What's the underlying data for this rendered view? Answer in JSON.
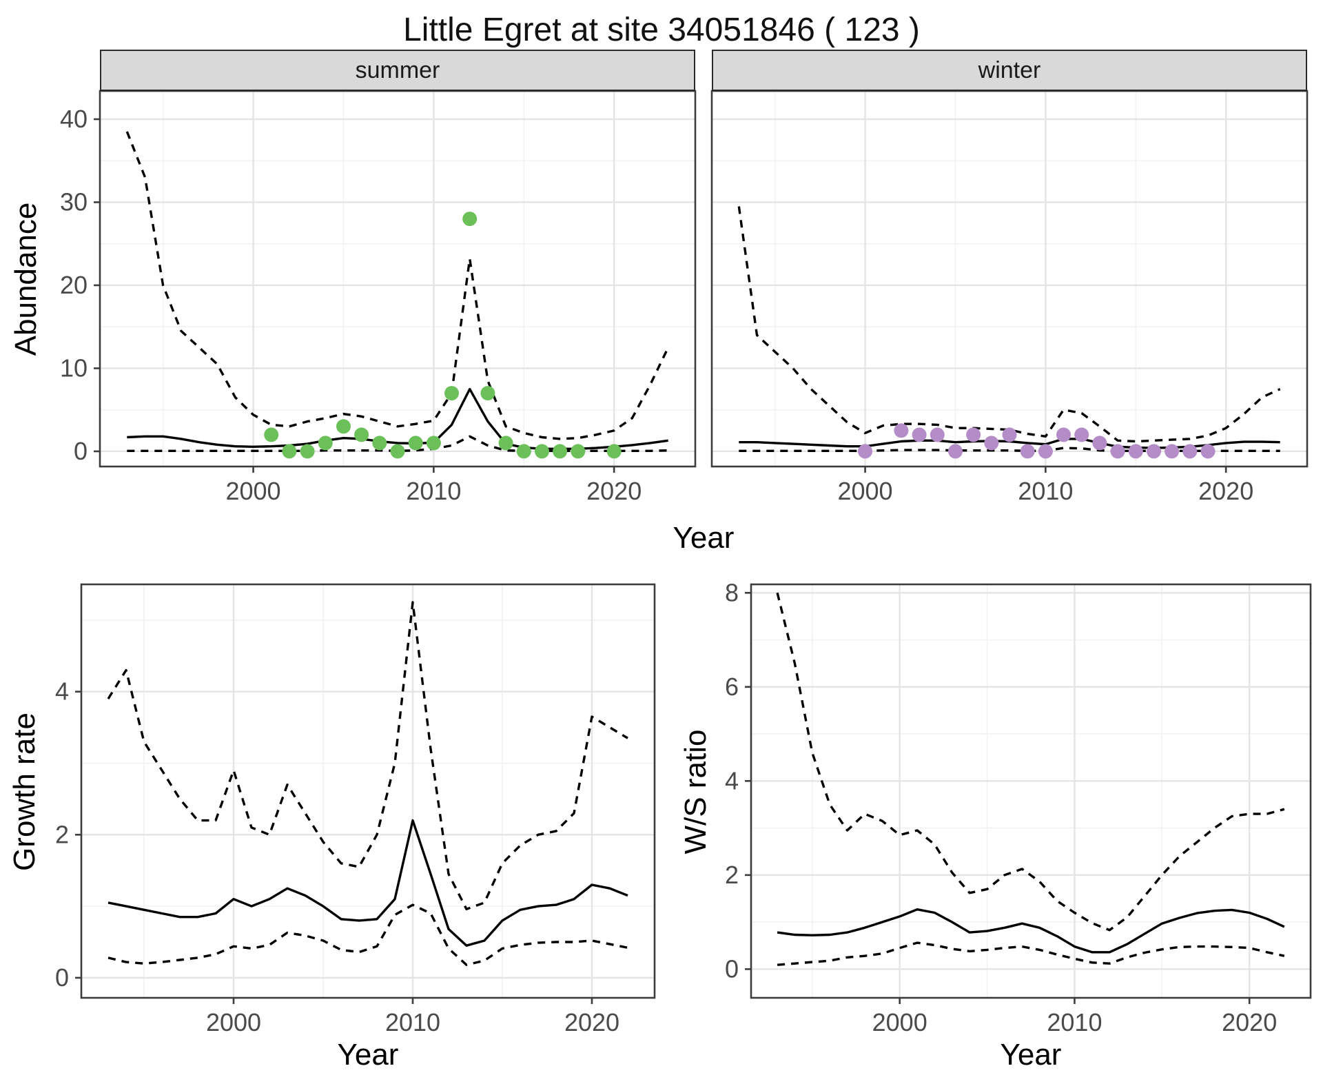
{
  "title": "Little Egret at site 34051846 ( 123 )",
  "colors": {
    "observed_summer": "#6CC05A",
    "observed_winter": "#B48CC8",
    "line": "#000000",
    "grid_major": "#E4E4E4",
    "grid_minor": "#F2F2F2",
    "panel_border": "#3C3C3C",
    "strip_bg": "#D9D9D9",
    "tick_text": "#4A4A4A"
  },
  "chart_data": [
    {
      "id": "abundance_summer",
      "type": "line",
      "facet_label": "summer",
      "ylabel": "Abundance",
      "xlabel": "Year",
      "xlim": [
        1991.5,
        2024.5
      ],
      "ylim": [
        -1.83,
        43.4
      ],
      "x_ticks": [
        2000,
        2010,
        2020
      ],
      "x_minor": [
        1995,
        2005,
        2015
      ],
      "y_ticks": [
        0,
        10,
        20,
        30,
        40
      ],
      "y_minor": [
        5,
        15,
        25,
        35
      ],
      "years": [
        1993,
        1994,
        1995,
        1996,
        1997,
        1998,
        1999,
        2000,
        2001,
        2002,
        2003,
        2004,
        2005,
        2006,
        2007,
        2008,
        2009,
        2010,
        2011,
        2012,
        2013,
        2014,
        2015,
        2016,
        2017,
        2018,
        2019,
        2020,
        2021,
        2022,
        2023
      ],
      "series": [
        {
          "name": "fit",
          "style": "solid",
          "values": [
            1.7,
            1.8,
            1.8,
            1.5,
            1.1,
            0.8,
            0.6,
            0.55,
            0.6,
            0.7,
            0.9,
            1.3,
            1.6,
            1.5,
            1.2,
            1.0,
            0.95,
            1.05,
            3.2,
            7.5,
            3.6,
            0.9,
            0.45,
            0.3,
            0.3,
            0.3,
            0.4,
            0.55,
            0.75,
            1.0,
            1.3
          ]
        },
        {
          "name": "upper_ci",
          "style": "dashed",
          "values": [
            38.5,
            33,
            20,
            14.5,
            12.5,
            10.5,
            6.5,
            4.4,
            3.2,
            3.0,
            3.6,
            4.0,
            4.5,
            4.2,
            3.6,
            3.0,
            3.3,
            3.7,
            7.0,
            23.2,
            8.5,
            3.0,
            2.2,
            1.7,
            1.5,
            1.6,
            2.0,
            2.5,
            4.0,
            8.0,
            12.5
          ]
        },
        {
          "name": "lower_ci",
          "style": "dashed",
          "values": [
            0.05,
            0.05,
            0.05,
            0.05,
            0.05,
            0.05,
            0.05,
            0.05,
            0.05,
            0.05,
            0.05,
            0.1,
            0.1,
            0.1,
            0.1,
            0.05,
            0.1,
            0.3,
            0.7,
            1.8,
            0.7,
            0.1,
            0.05,
            0.05,
            0.05,
            0.05,
            0.05,
            0.05,
            0.05,
            0.05,
            0.1
          ]
        }
      ],
      "points": {
        "name": "observed",
        "color_key": "observed_summer",
        "x": [
          2001,
          2002,
          2003,
          2004,
          2005,
          2006,
          2007,
          2008,
          2009,
          2010,
          2011,
          2012,
          2013,
          2014,
          2015,
          2016,
          2017,
          2018,
          2020
        ],
        "y": [
          2,
          0,
          0,
          1,
          3,
          2,
          1,
          0,
          1,
          1,
          7,
          28,
          7,
          1,
          0,
          0,
          0,
          0,
          0
        ]
      }
    },
    {
      "id": "abundance_winter",
      "type": "line",
      "facet_label": "winter",
      "ylabel": "Abundance",
      "xlabel": "Year",
      "xlim": [
        1991.5,
        2024.5
      ],
      "ylim": [
        -1.83,
        43.4
      ],
      "x_ticks": [
        2000,
        2010,
        2020
      ],
      "x_minor": [
        1995,
        2005,
        2015
      ],
      "y_ticks": [
        0,
        10,
        20,
        30,
        40
      ],
      "y_minor": [
        5,
        15,
        25,
        35
      ],
      "years": [
        1993,
        1994,
        1995,
        1996,
        1997,
        1998,
        1999,
        2000,
        2001,
        2002,
        2003,
        2004,
        2005,
        2006,
        2007,
        2008,
        2009,
        2010,
        2011,
        2012,
        2013,
        2014,
        2015,
        2016,
        2017,
        2018,
        2019,
        2020,
        2021,
        2022,
        2023
      ],
      "series": [
        {
          "name": "fit",
          "style": "solid",
          "values": [
            1.1,
            1.1,
            1.0,
            0.9,
            0.8,
            0.7,
            0.6,
            0.6,
            0.9,
            1.2,
            1.3,
            1.3,
            1.1,
            1.2,
            1.25,
            1.2,
            1.0,
            0.85,
            1.5,
            1.5,
            1.0,
            0.55,
            0.45,
            0.4,
            0.45,
            0.55,
            0.75,
            1.0,
            1.15,
            1.15,
            1.1
          ]
        },
        {
          "name": "upper_ci",
          "style": "dashed",
          "values": [
            29.5,
            14,
            12,
            10,
            7.5,
            5.5,
            3.5,
            2.2,
            3.1,
            3.3,
            3.3,
            3.2,
            2.8,
            2.8,
            2.7,
            2.6,
            2.1,
            1.8,
            5.0,
            4.6,
            3.0,
            1.3,
            1.2,
            1.3,
            1.4,
            1.5,
            1.9,
            2.8,
            4.5,
            6.5,
            7.5
          ]
        },
        {
          "name": "lower_ci",
          "style": "dashed",
          "values": [
            0.05,
            0.05,
            0.05,
            0.05,
            0.05,
            0.05,
            0.05,
            0.05,
            0.1,
            0.15,
            0.15,
            0.15,
            0.1,
            0.1,
            0.1,
            0.1,
            0.05,
            0.05,
            0.4,
            0.35,
            0.1,
            0.05,
            0.05,
            0.05,
            0.05,
            0.05,
            0.05,
            0.05,
            0.05,
            0.05,
            0.05
          ]
        }
      ],
      "points": {
        "name": "observed",
        "color_key": "observed_winter",
        "x": [
          2000,
          2002,
          2003,
          2004,
          2005,
          2006,
          2007,
          2008,
          2009,
          2010,
          2011,
          2012,
          2013,
          2014,
          2015,
          2016,
          2017,
          2018,
          2019
        ],
        "y": [
          0,
          2.5,
          2,
          2,
          0,
          2,
          1,
          2,
          0,
          0,
          2,
          2,
          1,
          0,
          0,
          0,
          0,
          0,
          0
        ]
      }
    },
    {
      "id": "growth_rate",
      "type": "line",
      "facet_label": "",
      "ylabel": "Growth rate",
      "xlabel": "Year",
      "xlim": [
        1991.5,
        2023.5
      ],
      "ylim": [
        -0.28,
        5.5
      ],
      "x_ticks": [
        2000,
        2010,
        2020
      ],
      "x_minor": [
        1995,
        2005,
        2015
      ],
      "y_ticks": [
        0,
        2,
        4
      ],
      "y_minor": [
        1,
        3,
        5
      ],
      "years": [
        1993,
        1994,
        1995,
        1996,
        1997,
        1998,
        1999,
        2000,
        2001,
        2002,
        2003,
        2004,
        2005,
        2006,
        2007,
        2008,
        2009,
        2010,
        2011,
        2012,
        2013,
        2014,
        2015,
        2016,
        2017,
        2018,
        2019,
        2020,
        2021,
        2022
      ],
      "series": [
        {
          "name": "fit",
          "style": "solid",
          "values": [
            1.05,
            1.0,
            0.95,
            0.9,
            0.85,
            0.85,
            0.9,
            1.1,
            1.0,
            1.1,
            1.25,
            1.15,
            1.0,
            0.82,
            0.8,
            0.82,
            1.1,
            2.2,
            1.45,
            0.68,
            0.45,
            0.52,
            0.8,
            0.95,
            1.0,
            1.02,
            1.1,
            1.3,
            1.25,
            1.15
          ]
        },
        {
          "name": "upper_ci",
          "style": "dashed",
          "values": [
            3.9,
            4.3,
            3.3,
            2.9,
            2.5,
            2.2,
            2.2,
            2.9,
            2.1,
            2.0,
            2.7,
            2.3,
            1.9,
            1.6,
            1.55,
            2.0,
            3.0,
            5.25,
            3.2,
            1.45,
            0.96,
            1.05,
            1.6,
            1.85,
            2.0,
            2.05,
            2.3,
            3.65,
            3.5,
            3.35
          ]
        },
        {
          "name": "lower_ci",
          "style": "dashed",
          "values": [
            0.28,
            0.22,
            0.2,
            0.22,
            0.25,
            0.28,
            0.33,
            0.44,
            0.41,
            0.46,
            0.63,
            0.59,
            0.52,
            0.39,
            0.36,
            0.44,
            0.88,
            1.02,
            0.9,
            0.41,
            0.18,
            0.24,
            0.41,
            0.46,
            0.49,
            0.5,
            0.5,
            0.52,
            0.47,
            0.42
          ]
        }
      ],
      "points": null
    },
    {
      "id": "ws_ratio",
      "type": "line",
      "facet_label": "",
      "ylabel": "W/S ratio",
      "xlabel": "Year",
      "xlim": [
        1991.5,
        2023.5
      ],
      "ylim": [
        -0.61,
        8.18
      ],
      "x_ticks": [
        2000,
        2010,
        2020
      ],
      "x_minor": [
        1995,
        2005,
        2015
      ],
      "y_ticks": [
        0,
        2,
        4,
        6,
        8
      ],
      "y_minor": [
        1,
        3,
        5,
        7
      ],
      "years": [
        1993,
        1994,
        1995,
        1996,
        1997,
        1998,
        1999,
        2000,
        2001,
        2002,
        2003,
        2004,
        2005,
        2006,
        2007,
        2008,
        2009,
        2010,
        2011,
        2012,
        2013,
        2014,
        2015,
        2016,
        2017,
        2018,
        2019,
        2020,
        2021,
        2022
      ],
      "series": [
        {
          "name": "fit",
          "style": "solid",
          "values": [
            0.78,
            0.73,
            0.72,
            0.73,
            0.78,
            0.88,
            1.0,
            1.12,
            1.27,
            1.2,
            1.0,
            0.78,
            0.81,
            0.88,
            0.97,
            0.88,
            0.7,
            0.48,
            0.36,
            0.36,
            0.53,
            0.75,
            0.97,
            1.09,
            1.19,
            1.24,
            1.26,
            1.2,
            1.07,
            0.9
          ]
        },
        {
          "name": "upper_ci",
          "style": "dashed",
          "values": [
            8.0,
            6.5,
            4.6,
            3.5,
            2.95,
            3.3,
            3.15,
            2.85,
            2.95,
            2.65,
            2.05,
            1.62,
            1.7,
            2.0,
            2.13,
            1.86,
            1.45,
            1.2,
            0.98,
            0.83,
            1.1,
            1.55,
            2.0,
            2.4,
            2.7,
            3.0,
            3.25,
            3.3,
            3.3,
            3.4
          ]
        },
        {
          "name": "lower_ci",
          "style": "dashed",
          "values": [
            0.09,
            0.12,
            0.15,
            0.18,
            0.25,
            0.28,
            0.33,
            0.45,
            0.56,
            0.51,
            0.43,
            0.38,
            0.41,
            0.45,
            0.48,
            0.41,
            0.31,
            0.22,
            0.14,
            0.12,
            0.25,
            0.35,
            0.42,
            0.47,
            0.48,
            0.48,
            0.47,
            0.45,
            0.36,
            0.28
          ]
        }
      ],
      "points": null
    }
  ]
}
